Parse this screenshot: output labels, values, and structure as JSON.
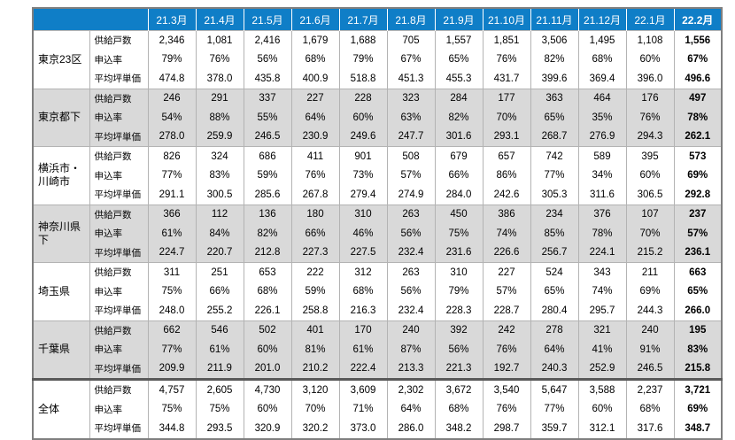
{
  "colors": {
    "header_bg": "#0f7ec7",
    "header_text": "#ffffff",
    "shaded_group_bg": "#d9d9d9",
    "grid_line": "#b3b3b3",
    "total_separator": "#595959"
  },
  "chart_data": {
    "type": "table",
    "columns": [
      "21.3月",
      "21.4月",
      "21.5月",
      "21.6月",
      "21.7月",
      "21.8月",
      "21.9月",
      "21.10月",
      "21.11月",
      "21.12月",
      "22.1月",
      "22.2月"
    ],
    "metric_labels": [
      "供給戸数",
      "申込率",
      "平均坪単価"
    ],
    "layout_hints": {
      "last_column_bold": true,
      "shaded_groups": [
        "東京都下",
        "神奈川県下",
        "千葉県"
      ],
      "thick_separator_before": "全体"
    },
    "row_groups": [
      {
        "region": "東京23区",
        "rows": [
          {
            "label": "供給戸数",
            "values": [
              "2,346",
              "1,081",
              "2,416",
              "1,679",
              "1,688",
              "705",
              "1,557",
              "1,851",
              "3,506",
              "1,495",
              "1,108",
              "1,556"
            ]
          },
          {
            "label": "申込率",
            "values": [
              "79%",
              "76%",
              "56%",
              "68%",
              "79%",
              "67%",
              "65%",
              "76%",
              "82%",
              "68%",
              "60%",
              "67%"
            ]
          },
          {
            "label": "平均坪単価",
            "values": [
              "474.8",
              "378.0",
              "435.8",
              "400.9",
              "518.8",
              "451.3",
              "455.3",
              "431.7",
              "399.6",
              "369.4",
              "396.0",
              "496.6"
            ]
          }
        ]
      },
      {
        "region": "東京都下",
        "rows": [
          {
            "label": "供給戸数",
            "values": [
              "246",
              "291",
              "337",
              "227",
              "228",
              "323",
              "284",
              "177",
              "363",
              "464",
              "176",
              "497"
            ]
          },
          {
            "label": "申込率",
            "values": [
              "54%",
              "88%",
              "55%",
              "64%",
              "60%",
              "63%",
              "82%",
              "70%",
              "65%",
              "35%",
              "76%",
              "78%"
            ]
          },
          {
            "label": "平均坪単価",
            "values": [
              "278.0",
              "259.9",
              "246.5",
              "230.9",
              "249.6",
              "247.7",
              "301.6",
              "293.1",
              "268.7",
              "276.9",
              "294.3",
              "262.1"
            ]
          }
        ]
      },
      {
        "region": "横浜市・川崎市",
        "rows": [
          {
            "label": "供給戸数",
            "values": [
              "826",
              "324",
              "686",
              "411",
              "901",
              "508",
              "679",
              "657",
              "742",
              "589",
              "395",
              "573"
            ]
          },
          {
            "label": "申込率",
            "values": [
              "77%",
              "83%",
              "59%",
              "76%",
              "73%",
              "57%",
              "66%",
              "86%",
              "77%",
              "34%",
              "60%",
              "69%"
            ]
          },
          {
            "label": "平均坪単価",
            "values": [
              "291.1",
              "300.5",
              "285.6",
              "267.8",
              "279.4",
              "274.9",
              "284.0",
              "242.6",
              "305.3",
              "311.6",
              "306.5",
              "292.8"
            ]
          }
        ]
      },
      {
        "region": "神奈川県下",
        "rows": [
          {
            "label": "供給戸数",
            "values": [
              "366",
              "112",
              "136",
              "180",
              "310",
              "263",
              "450",
              "386",
              "234",
              "376",
              "107",
              "237"
            ]
          },
          {
            "label": "申込率",
            "values": [
              "61%",
              "84%",
              "82%",
              "66%",
              "46%",
              "56%",
              "75%",
              "74%",
              "85%",
              "78%",
              "70%",
              "57%"
            ]
          },
          {
            "label": "平均坪単価",
            "values": [
              "224.7",
              "220.7",
              "212.8",
              "227.3",
              "227.5",
              "232.4",
              "231.6",
              "226.6",
              "256.7",
              "224.1",
              "215.2",
              "236.1"
            ]
          }
        ]
      },
      {
        "region": "埼玉県",
        "rows": [
          {
            "label": "供給戸数",
            "values": [
              "311",
              "251",
              "653",
              "222",
              "312",
              "263",
              "310",
              "227",
              "524",
              "343",
              "211",
              "663"
            ]
          },
          {
            "label": "申込率",
            "values": [
              "75%",
              "66%",
              "68%",
              "59%",
              "68%",
              "56%",
              "79%",
              "57%",
              "65%",
              "74%",
              "69%",
              "65%"
            ]
          },
          {
            "label": "平均坪単価",
            "values": [
              "248.0",
              "255.2",
              "226.1",
              "258.8",
              "216.3",
              "232.4",
              "228.3",
              "228.7",
              "280.4",
              "295.7",
              "244.3",
              "266.0"
            ]
          }
        ]
      },
      {
        "region": "千葉県",
        "rows": [
          {
            "label": "供給戸数",
            "values": [
              "662",
              "546",
              "502",
              "401",
              "170",
              "240",
              "392",
              "242",
              "278",
              "321",
              "240",
              "195"
            ]
          },
          {
            "label": "申込率",
            "values": [
              "77%",
              "61%",
              "60%",
              "81%",
              "61%",
              "87%",
              "56%",
              "76%",
              "64%",
              "41%",
              "91%",
              "83%"
            ]
          },
          {
            "label": "平均坪単価",
            "values": [
              "209.9",
              "211.9",
              "201.0",
              "210.2",
              "222.4",
              "213.3",
              "221.3",
              "192.7",
              "240.3",
              "252.9",
              "246.5",
              "215.8"
            ]
          }
        ]
      },
      {
        "region": "全体",
        "rows": [
          {
            "label": "供給戸数",
            "values": [
              "4,757",
              "2,605",
              "4,730",
              "3,120",
              "3,609",
              "2,302",
              "3,672",
              "3,540",
              "5,647",
              "3,588",
              "2,237",
              "3,721"
            ]
          },
          {
            "label": "申込率",
            "values": [
              "75%",
              "75%",
              "60%",
              "70%",
              "71%",
              "64%",
              "68%",
              "76%",
              "77%",
              "60%",
              "68%",
              "69%"
            ]
          },
          {
            "label": "平均坪単価",
            "values": [
              "344.8",
              "293.5",
              "320.9",
              "320.2",
              "373.0",
              "286.0",
              "348.2",
              "298.7",
              "359.7",
              "312.1",
              "317.6",
              "348.7"
            ]
          }
        ]
      }
    ]
  }
}
